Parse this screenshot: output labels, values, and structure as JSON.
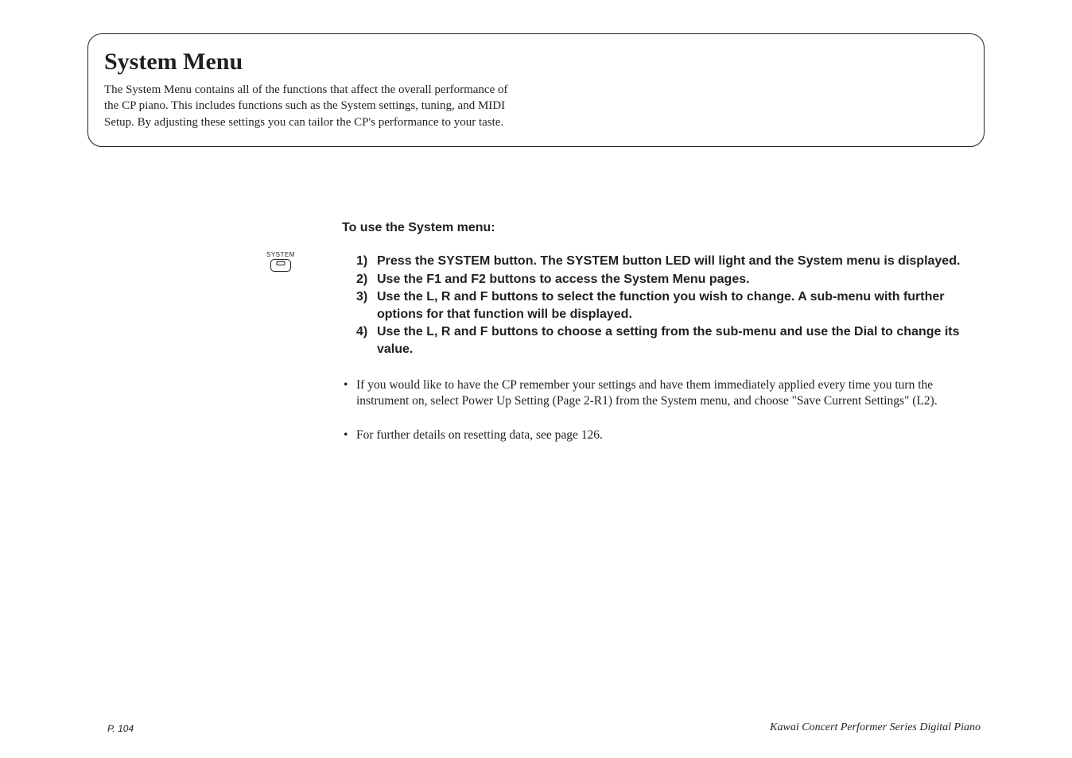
{
  "header": {
    "title": "System Menu",
    "description": "The System Menu contains all of the functions that affect the overall performance of the CP piano.  This includes functions such as the System settings, tuning, and MIDI Setup.  By adjusting these settings you can tailor the CP's performance to your taste."
  },
  "icon": {
    "label": "SYSTEM"
  },
  "subheading": "To use the System menu:",
  "steps": [
    {
      "num": "1)",
      "text": "Press the SYSTEM button.  The SYSTEM button LED will light and the System menu is displayed."
    },
    {
      "num": "2)",
      "text": "Use the F1 and F2 buttons to access the System Menu pages."
    },
    {
      "num": "3)",
      "text": "Use the L, R and F buttons to select the function you wish to change.  A sub-menu with further options for that function will be displayed."
    },
    {
      "num": "4)",
      "text": "Use the L, R and F buttons to choose a setting from the sub-menu and use the Dial to change its value."
    }
  ],
  "bullets": [
    "If you would like to have the CP remember your settings and have them immediately applied every time you turn the instrument on, select Power Up Setting (Page 2-R1) from the System menu, and choose \"Save Current Settings\" (L2).",
    "For further details on resetting data, see page 126."
  ],
  "footer": {
    "left": "P. 104",
    "right": "Kawai Concert Performer Series Digital Piano"
  },
  "colors": {
    "text": "#231f20",
    "background": "#ffffff"
  }
}
